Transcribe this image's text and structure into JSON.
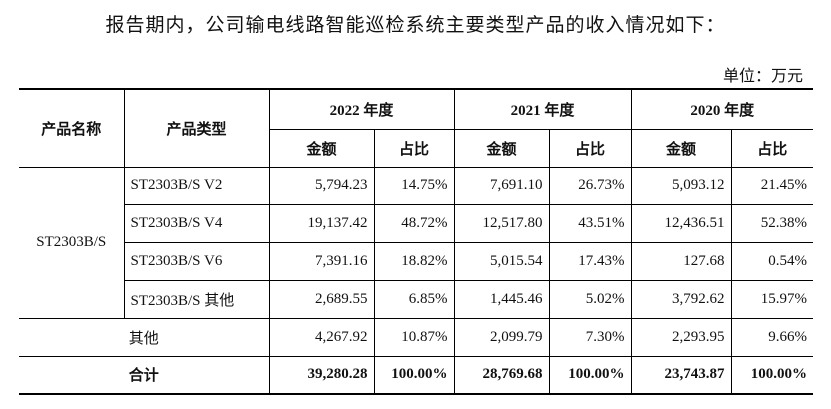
{
  "intro": "报告期内，公司输电线路智能巡检系统主要类型产品的收入情况如下：",
  "unit": "单位：万元",
  "header": {
    "product_name": "产品名称",
    "product_type": "产品类型",
    "years": [
      "2022 年度",
      "2021 年度",
      "2020 年度"
    ],
    "amount": "金额",
    "ratio": "占比"
  },
  "group_name": "ST2303B/S",
  "rows": [
    {
      "type": "ST2303B/S V2",
      "v": [
        "5,794.23",
        "14.75%",
        "7,691.10",
        "26.73%",
        "5,093.12",
        "21.45%"
      ]
    },
    {
      "type": "ST2303B/S V4",
      "v": [
        "19,137.42",
        "48.72%",
        "12,517.80",
        "43.51%",
        "12,436.51",
        "52.38%"
      ]
    },
    {
      "type": "ST2303B/S V6",
      "v": [
        "7,391.16",
        "18.82%",
        "5,015.54",
        "17.43%",
        "127.68",
        "0.54%"
      ]
    },
    {
      "type": "ST2303B/S 其他",
      "v": [
        "2,689.55",
        "6.85%",
        "1,445.46",
        "5.02%",
        "3,792.62",
        "15.97%"
      ]
    }
  ],
  "other": {
    "label": "其他",
    "v": [
      "4,267.92",
      "10.87%",
      "2,099.79",
      "7.30%",
      "2,293.95",
      "9.66%"
    ]
  },
  "total": {
    "label": "合计",
    "v": [
      "39,280.28",
      "100.00%",
      "28,769.68",
      "100.00%",
      "23,743.87",
      "100.00%"
    ]
  }
}
